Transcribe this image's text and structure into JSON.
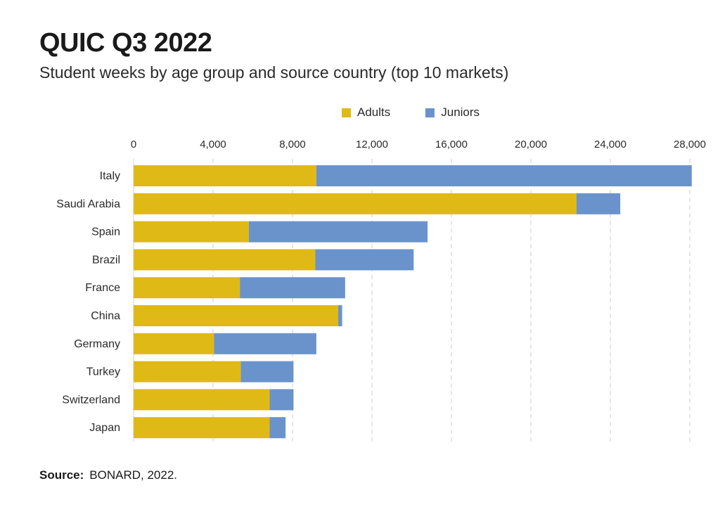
{
  "header": {
    "title": "QUIC Q3 2022",
    "subtitle": "Student weeks by age group and source country (top 10 markets)"
  },
  "legend": {
    "adults": "Adults",
    "juniors": "Juniors"
  },
  "footer": {
    "source_label": "Source:",
    "source_text": "BONARD, 2022."
  },
  "colors": {
    "adults": "#dfb915",
    "juniors": "#6a93cc",
    "grid": "#cccccc"
  },
  "chart_data": {
    "type": "bar",
    "orientation": "horizontal",
    "stacked": true,
    "title": "QUIC Q3 2022",
    "subtitle": "Student weeks by age group and source country (top 10 markets)",
    "categories": [
      "Italy",
      "Saudi Arabia",
      "Spain",
      "Brazil",
      "France",
      "China",
      "Germany",
      "Turkey",
      "Switzerland",
      "Japan"
    ],
    "series": [
      {
        "name": "Adults",
        "values": [
          9200,
          22300,
          5800,
          9150,
          5350,
          10300,
          4050,
          5400,
          6850,
          6850
        ]
      },
      {
        "name": "Juniors",
        "values": [
          18900,
          2200,
          9000,
          4950,
          5300,
          200,
          5150,
          2650,
          1200,
          800
        ]
      }
    ],
    "xlim": [
      0,
      28000
    ],
    "ticks": [
      "0",
      "4,000",
      "8,000",
      "12,000",
      "16,000",
      "20,000",
      "24,000",
      "28,000"
    ],
    "tick_values": [
      0,
      4000,
      8000,
      12000,
      16000,
      20000,
      24000,
      28000
    ],
    "grid": true,
    "legend_position": "top"
  }
}
